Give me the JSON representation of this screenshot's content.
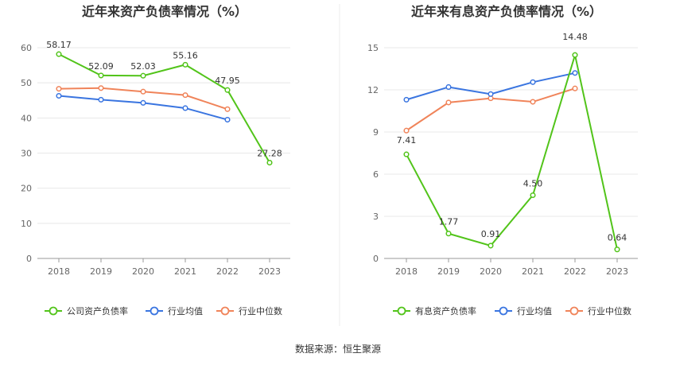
{
  "source": "数据来源：恒生聚源",
  "chart_data": [
    {
      "type": "line",
      "title": "近年来资产负债率情况（%）",
      "categories": [
        "2018",
        "2019",
        "2020",
        "2021",
        "2022",
        "2023"
      ],
      "yticks": [
        "0",
        "10",
        "20",
        "30",
        "40",
        "50",
        "60"
      ],
      "ylim": [
        0,
        60
      ],
      "grid": true,
      "legend_position": "bottom",
      "series": [
        {
          "name": "公司资产负债率",
          "color": "#52c41a",
          "labeled": true,
          "values": [
            58.17,
            52.09,
            52.03,
            55.16,
            47.95,
            27.28
          ],
          "labels": [
            "58.17",
            "52.09",
            "52.03",
            "55.16",
            "47.95",
            "27.28"
          ]
        },
        {
          "name": "行业均值",
          "color": "#3a75e0",
          "labeled": false,
          "values": [
            46.3,
            45.2,
            44.3,
            42.8,
            39.5,
            null
          ]
        },
        {
          "name": "行业中位数",
          "color": "#f0845a",
          "labeled": false,
          "values": [
            48.3,
            48.5,
            47.5,
            46.5,
            42.5,
            null
          ]
        }
      ]
    },
    {
      "type": "line",
      "title": "近年来有息资产负债率情况（%）",
      "categories": [
        "2018",
        "2019",
        "2020",
        "2021",
        "2022",
        "2023"
      ],
      "yticks": [
        "0",
        "3",
        "6",
        "9",
        "12",
        "15"
      ],
      "ylim": [
        0,
        15
      ],
      "grid": true,
      "legend_position": "bottom",
      "series": [
        {
          "name": "有息资产负债率",
          "color": "#52c41a",
          "labeled": true,
          "values": [
            7.41,
            1.77,
            0.91,
            4.5,
            14.48,
            0.64
          ],
          "labels": [
            "7.41",
            "1.77",
            "0.91",
            "4.50",
            "14.48",
            "0.64"
          ]
        },
        {
          "name": "行业均值",
          "color": "#3a75e0",
          "labeled": false,
          "values": [
            11.3,
            12.2,
            11.7,
            12.55,
            13.2,
            null
          ]
        },
        {
          "name": "行业中位数",
          "color": "#f0845a",
          "labeled": false,
          "values": [
            9.1,
            11.1,
            11.4,
            11.15,
            12.1,
            null
          ]
        }
      ]
    }
  ]
}
